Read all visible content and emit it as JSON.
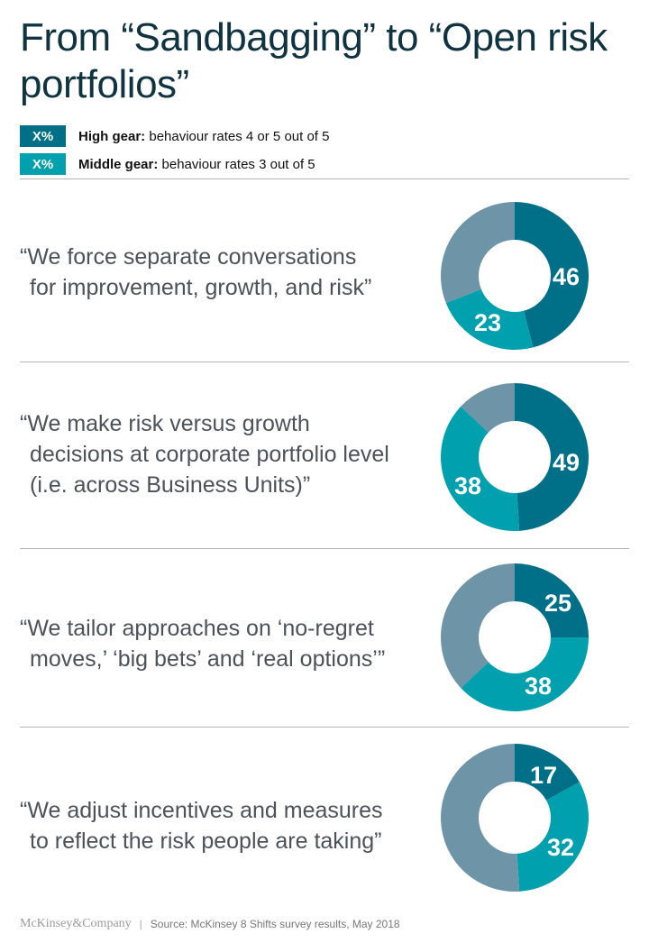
{
  "title": "From “Sandbagging” to “Open risk portfolios”",
  "legend": [
    {
      "swatch": "X%",
      "bold": "High gear:",
      "text": " behaviour rates 4 or 5 out of 5",
      "color": "#006f88"
    },
    {
      "swatch": "X%",
      "bold": "Middle gear:",
      "text": " behaviour rates 3 out of 5",
      "color": "#00a0ae"
    }
  ],
  "colors": {
    "high": "#006f88",
    "middle": "#00a0ae",
    "rest": "#6e94a8"
  },
  "rows": [
    {
      "line1": "“We force separate conversations",
      "line2": "for improvement, growth, and risk”",
      "line3": "",
      "high": 46,
      "middle": 23
    },
    {
      "line1": "“We make risk versus growth",
      "line2": "decisions at corporate portfolio level",
      "line3": "(i.e. across Business Units)”",
      "high": 49,
      "middle": 38
    },
    {
      "line1": "“We tailor approaches on ‘no-regret",
      "line2": "moves,’ ‘big bets’ and ‘real options’”",
      "line3": "",
      "high": 25,
      "middle": 38
    },
    {
      "line1": "“We adjust incentives and measures",
      "line2": "to reflect the risk people are taking”",
      "line3": "",
      "high": 17,
      "middle": 32
    }
  ],
  "footer": {
    "brand": "McKinsey&Company",
    "separator": "|",
    "source": "Source: McKinsey 8 Shifts survey results, May 2018"
  },
  "chart_data": {
    "type": "pie",
    "title": "From “Sandbagging” to “Open risk portfolios”",
    "subtype": "donut",
    "legend": [
      "High gear: behaviour rates 4 or 5 out of 5",
      "Middle gear: behaviour rates 3 out of 5"
    ],
    "categories": [
      "We force separate conversations for improvement, growth, and risk",
      "We make risk versus growth decisions at corporate portfolio level (i.e. across Business Units)",
      "We tailor approaches on 'no-regret moves,' 'big bets' and 'real options'",
      "We adjust incentives and measures to reflect the risk people are taking"
    ],
    "series": [
      {
        "name": "High gear",
        "values": [
          46,
          49,
          25,
          17
        ],
        "color": "#006f88"
      },
      {
        "name": "Middle gear",
        "values": [
          23,
          38,
          38,
          32
        ],
        "color": "#00a0ae"
      },
      {
        "name": "Other",
        "values": [
          31,
          13,
          37,
          51
        ],
        "color": "#6e94a8"
      }
    ],
    "units": "%"
  }
}
